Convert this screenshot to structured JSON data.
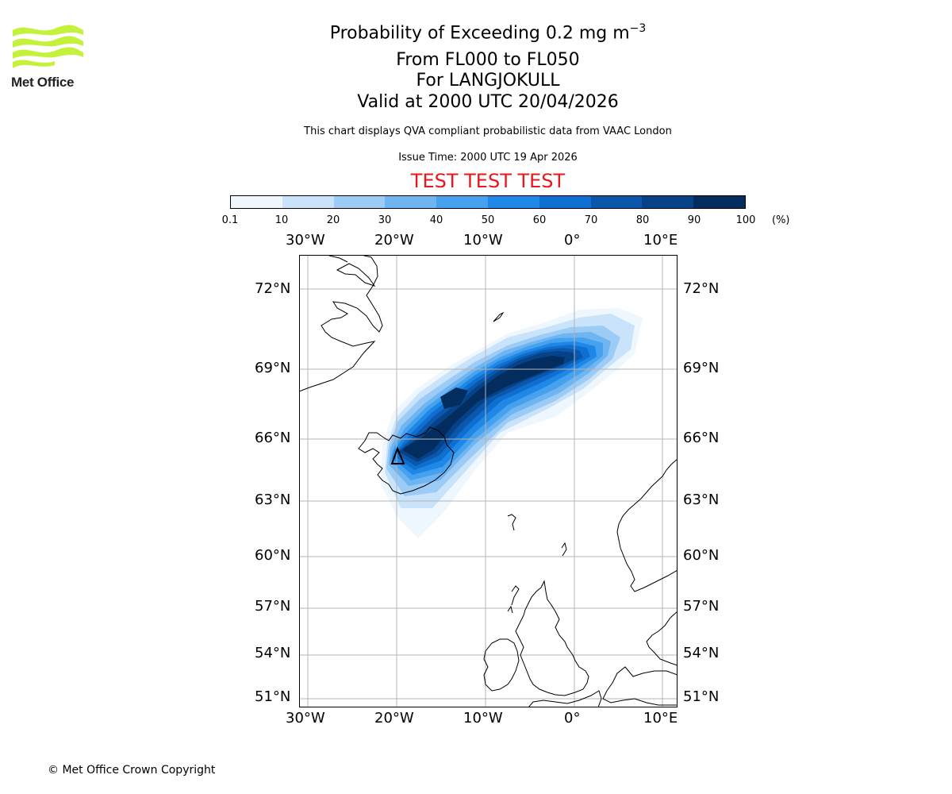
{
  "header": {
    "logo_text": "Met Office",
    "title_main": "Probability of Exceeding 0.2 mg m",
    "title_superscript": "−3",
    "title_level": "From FL000 to FL050",
    "title_location": "For LANGJOKULL",
    "title_valid": "Valid at 2000 UTC 20/04/2026",
    "description": "This chart displays QVA compliant probabilistic data from VAAC London",
    "issue_time": "Issue Time: 2000 UTC 19 Apr 2026",
    "test_banner": "TEST TEST TEST"
  },
  "colorbar": {
    "ticks": [
      "0.1",
      "10",
      "20",
      "30",
      "40",
      "50",
      "60",
      "70",
      "80",
      "90",
      "100"
    ],
    "unit": "(%)",
    "colors": [
      "#eef6fe",
      "#c9e3fb",
      "#9ccbf6",
      "#6fb5f2",
      "#46a1ee",
      "#1f87e6",
      "#0f6fd1",
      "#0a57ab",
      "#064288",
      "#032d5e"
    ]
  },
  "map": {
    "lon_labels": [
      "30°W",
      "20°W",
      "10°W",
      "0°",
      "10°E"
    ],
    "lat_labels": [
      "72°N",
      "69°N",
      "66°N",
      "63°N",
      "60°N",
      "57°N",
      "54°N",
      "51°N"
    ],
    "source_marker": "volcano-triangle"
  },
  "footer": {
    "copyright": "© Met Office Crown Copyright"
  }
}
